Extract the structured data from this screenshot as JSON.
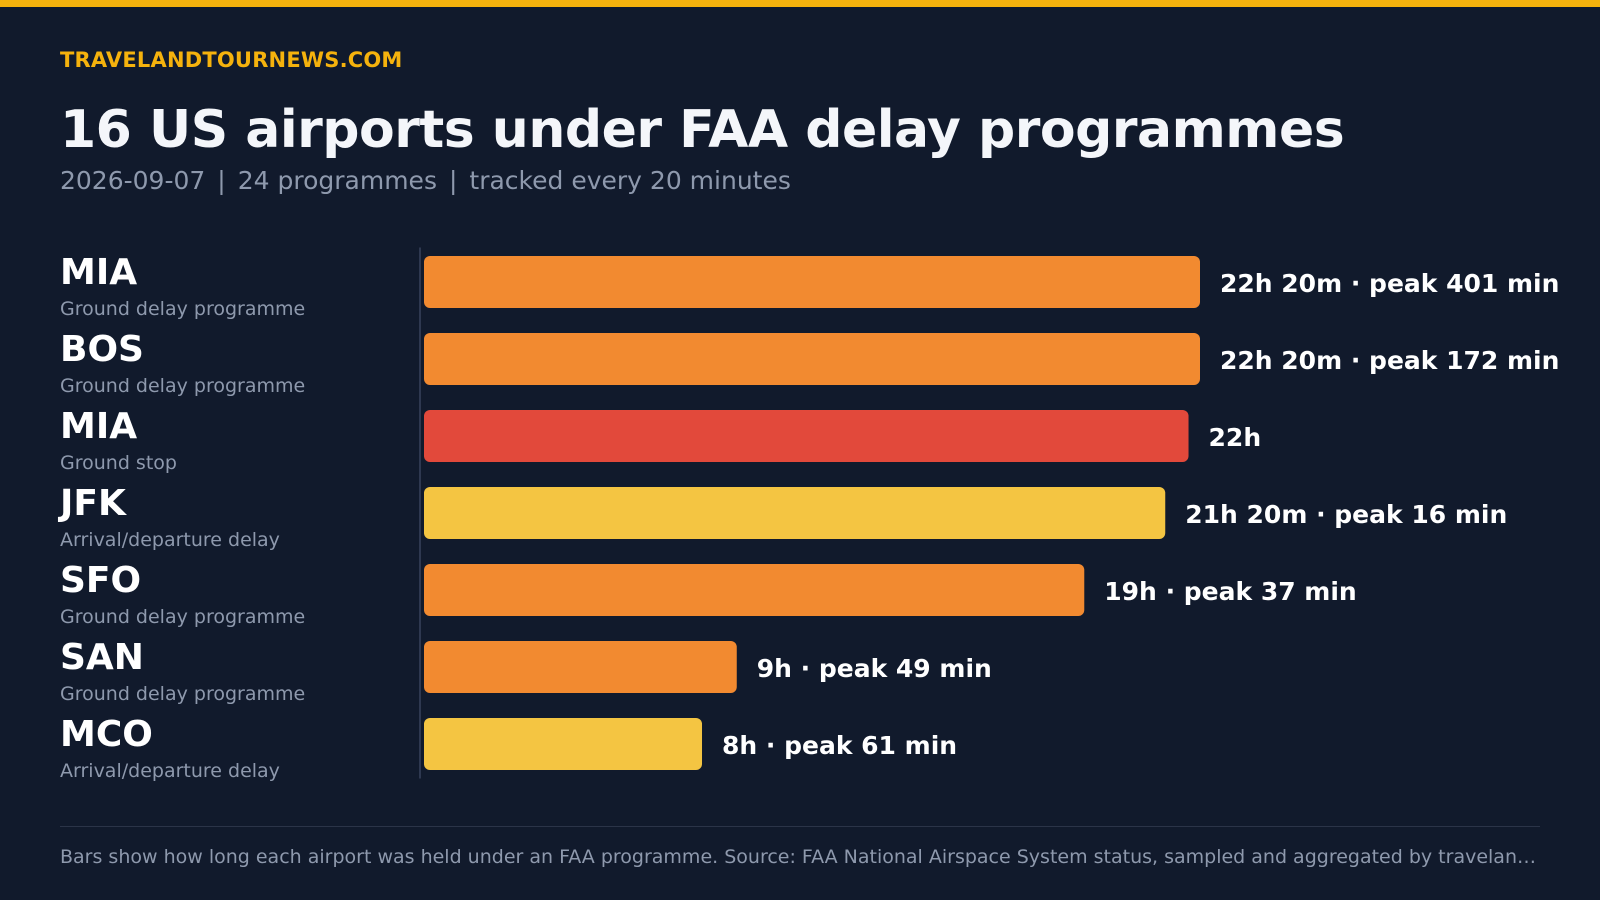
{
  "brand": "TRAVELANDTOURNEWS.COM",
  "title": "16 US airports under FAA delay programmes",
  "subtitle": {
    "date": "2026-09-07",
    "programmes": "24 programmes",
    "cadence": "tracked every 20 minutes",
    "separator": "|"
  },
  "colors": {
    "accent": "#f5b20d",
    "Ground delay programme": "#f28a30",
    "Ground stop": "#e2493b",
    "Arrival/departure delay": "#f4c542"
  },
  "chart_data": {
    "type": "bar",
    "orientation": "horizontal",
    "unit": "hours",
    "xlim": [
      0,
      22.33
    ],
    "categories": [
      "MIA",
      "BOS",
      "MIA",
      "JFK",
      "SFO",
      "SAN",
      "MCO"
    ],
    "programme_types": [
      "Ground delay programme",
      "Ground delay programme",
      "Ground stop",
      "Arrival/departure delay",
      "Ground delay programme",
      "Ground delay programme",
      "Arrival/departure delay"
    ],
    "values": [
      22.33,
      22.33,
      22.0,
      21.33,
      19.0,
      9.0,
      8.0
    ],
    "duration_labels": [
      "22h 20m",
      "22h 20m",
      "22h",
      "21h 20m",
      "19h",
      "9h",
      "8h"
    ],
    "peak_labels": [
      "peak 401 min",
      "peak 172 min",
      "",
      "peak 16 min",
      "peak 37 min",
      "peak 49 min",
      "peak 61 min"
    ],
    "label_separator": "·"
  },
  "footer": "Bars show how long each airport was held under an FAA programme. Source: FAA National Airspace System status, sampled and aggregated by travelandtournews.com"
}
